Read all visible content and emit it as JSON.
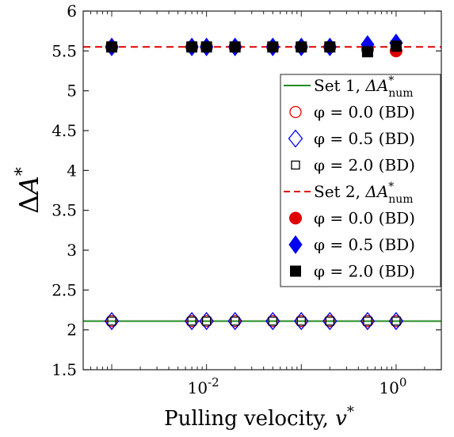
{
  "chart_data": {
    "type": "scatter",
    "x_scale": "log",
    "xlim": [
      0.0005,
      3
    ],
    "ylim": [
      1.5,
      6
    ],
    "x_ticks": [
      0.01,
      1
    ],
    "x_tick_labels": [
      {
        "base": "10",
        "exp": "-2"
      },
      {
        "base": "10",
        "exp": "0"
      }
    ],
    "y_ticks": [
      1.5,
      2,
      2.5,
      3,
      3.5,
      4,
      4.5,
      5,
      5.5,
      6
    ],
    "y_tick_labels": [
      "1.5",
      "2",
      "2.5",
      "3",
      "3.5",
      "4",
      "4.5",
      "5",
      "5.5",
      "6"
    ],
    "xlabel": {
      "text": "Pulling velocity, ",
      "var": "v",
      "sup": "*"
    },
    "ylabel": {
      "prefix": "Δ",
      "var": "A",
      "sup": "*"
    },
    "grid": false,
    "legend_position": "center-right",
    "x": [
      0.001,
      0.007,
      0.01,
      0.02,
      0.05,
      0.1,
      0.2,
      0.5,
      1.0
    ],
    "series": [
      {
        "name_parts": [
          "Set 1, ",
          "ΔA",
          "*",
          "num"
        ],
        "kind": "line",
        "color": "#228b22",
        "dash": "solid",
        "y_const": 2.11
      },
      {
        "name_parts": [
          "φ = 0.0 (BD)"
        ],
        "kind": "marker",
        "marker": "circle",
        "filled": false,
        "color": "#e00000",
        "y": [
          2.11,
          2.11,
          2.11,
          2.11,
          2.11,
          2.11,
          2.11,
          2.11,
          2.11
        ]
      },
      {
        "name_parts": [
          "φ = 0.5 (BD)"
        ],
        "kind": "marker",
        "marker": "diamond",
        "filled": false,
        "color": "#0000ee",
        "y": [
          2.11,
          2.11,
          2.11,
          2.11,
          2.11,
          2.11,
          2.11,
          2.11,
          2.11
        ]
      },
      {
        "name_parts": [
          "φ = 2.0 (BD)"
        ],
        "kind": "marker",
        "marker": "square",
        "filled": false,
        "color": "#000000",
        "y": [
          2.11,
          2.11,
          2.11,
          2.11,
          2.11,
          2.11,
          2.11,
          2.11,
          2.11
        ]
      },
      {
        "name_parts": [
          "Set 2, ",
          "ΔA",
          "*",
          "num"
        ],
        "kind": "line",
        "color": "#e00000",
        "dash": "dashed",
        "y_const": 5.55
      },
      {
        "name_parts": [
          "φ = 0.0 (BD)"
        ],
        "kind": "marker",
        "marker": "circle",
        "filled": true,
        "color": "#e00000",
        "y": [
          5.55,
          5.55,
          5.55,
          5.55,
          5.55,
          5.55,
          5.55,
          5.52,
          5.5
        ]
      },
      {
        "name_parts": [
          "φ = 0.5 (BD)"
        ],
        "kind": "marker",
        "marker": "diamond",
        "filled": true,
        "color": "#0000ee",
        "y": [
          5.55,
          5.55,
          5.55,
          5.55,
          5.55,
          5.55,
          5.55,
          5.58,
          5.6
        ]
      },
      {
        "name_parts": [
          "φ = 2.0 (BD)"
        ],
        "kind": "marker",
        "marker": "square",
        "filled": true,
        "color": "#000000",
        "y": [
          5.55,
          5.55,
          5.55,
          5.55,
          5.55,
          5.55,
          5.55,
          5.49,
          5.56
        ]
      }
    ]
  }
}
